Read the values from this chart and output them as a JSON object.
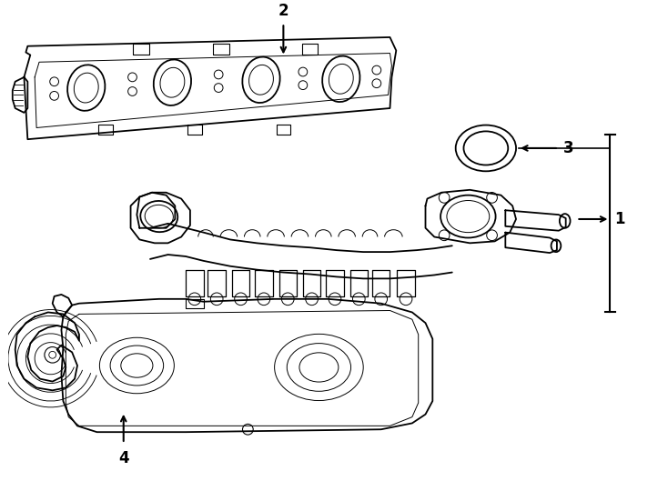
{
  "bg_color": "#ffffff",
  "line_color": "#000000",
  "lw_main": 1.3,
  "lw_thin": 0.7,
  "fig_width": 7.34,
  "fig_height": 5.4,
  "dpi": 100,
  "label_fontsize": 12,
  "label_fontweight": "bold"
}
